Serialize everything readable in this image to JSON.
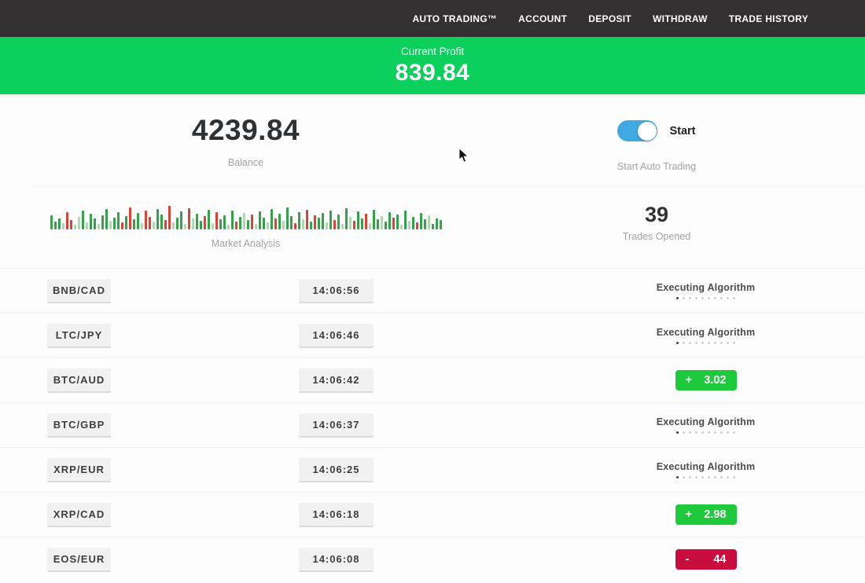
{
  "nav": {
    "items": [
      "AUTO TRADING™",
      "ACCOUNT",
      "DEPOSIT",
      "WITHDRAW",
      "TRADE HISTORY"
    ]
  },
  "profit_banner": {
    "label": "Current Profit",
    "value": "839.84"
  },
  "account": {
    "balance_value": "4239.84",
    "balance_label": "Balance",
    "toggle_label": "Start",
    "toggle_state": "on",
    "toggle_caption": "Start Auto Trading"
  },
  "market": {
    "analysis_label": "Market Analysis",
    "trades_opened_value": "39",
    "trades_opened_label": "Trades Opened"
  },
  "trades": [
    {
      "pair": "BNB/CAD",
      "time": "14:06:56",
      "status": "executing",
      "status_label": "Executing Algorithm"
    },
    {
      "pair": "LTC/JPY",
      "time": "14:06:46",
      "status": "executing",
      "status_label": "Executing Algorithm"
    },
    {
      "pair": "BTC/AUD",
      "time": "14:06:42",
      "status": "profit",
      "result_sign": "+",
      "result_value": "3.02"
    },
    {
      "pair": "BTC/GBP",
      "time": "14:06:37",
      "status": "executing",
      "status_label": "Executing Algorithm"
    },
    {
      "pair": "XRP/EUR",
      "time": "14:06:25",
      "status": "executing",
      "status_label": "Executing Algorithm"
    },
    {
      "pair": "XRP/CAD",
      "time": "14:06:18",
      "status": "profit",
      "result_sign": "+",
      "result_value": "2.98"
    },
    {
      "pair": "EOS/EUR",
      "time": "14:06:08",
      "status": "loss",
      "result_sign": "-",
      "result_value": "44"
    }
  ],
  "colors": {
    "banner_green": "#0bd15c",
    "profit_green": "#1fc93c",
    "loss_red": "#c90e3f",
    "toggle_blue": "#41a9e2",
    "nav_dark": "#333031",
    "candle_green": "#36a14b",
    "candle_red": "#d8433a",
    "candle_pale_green": "#aed9b2",
    "candle_pale_red": "#e9b4af"
  },
  "chart_data": {
    "type": "bar",
    "title": "Market Analysis",
    "note": "decorative candle strip; pairs of [height_px, color_key] where g=green r=red G=pale-green R=pale-red",
    "bars": [
      [
        18,
        "g"
      ],
      [
        10,
        "g"
      ],
      [
        14,
        "g"
      ],
      [
        8,
        "G"
      ],
      [
        22,
        "r"
      ],
      [
        12,
        "r"
      ],
      [
        6,
        "G"
      ],
      [
        16,
        "G"
      ],
      [
        24,
        "g"
      ],
      [
        9,
        "G"
      ],
      [
        20,
        "g"
      ],
      [
        14,
        "g"
      ],
      [
        7,
        "G"
      ],
      [
        18,
        "g"
      ],
      [
        26,
        "g"
      ],
      [
        11,
        "G"
      ],
      [
        15,
        "g"
      ],
      [
        22,
        "g"
      ],
      [
        9,
        "r"
      ],
      [
        17,
        "g"
      ],
      [
        28,
        "r"
      ],
      [
        13,
        "g"
      ],
      [
        21,
        "g"
      ],
      [
        8,
        "G"
      ],
      [
        24,
        "r"
      ],
      [
        16,
        "r"
      ],
      [
        10,
        "G"
      ],
      [
        26,
        "g"
      ],
      [
        19,
        "g"
      ],
      [
        12,
        "r"
      ],
      [
        30,
        "r"
      ],
      [
        9,
        "G"
      ],
      [
        15,
        "g"
      ],
      [
        23,
        "g"
      ],
      [
        7,
        "G"
      ],
      [
        27,
        "r"
      ],
      [
        14,
        "G"
      ],
      [
        20,
        "g"
      ],
      [
        11,
        "g"
      ],
      [
        17,
        "r"
      ],
      [
        25,
        "g"
      ],
      [
        8,
        "G"
      ],
      [
        22,
        "r"
      ],
      [
        13,
        "g"
      ],
      [
        18,
        "g"
      ],
      [
        6,
        "G"
      ],
      [
        24,
        "g"
      ],
      [
        10,
        "r"
      ],
      [
        16,
        "g"
      ],
      [
        21,
        "G"
      ],
      [
        12,
        "g"
      ],
      [
        19,
        "r"
      ],
      [
        7,
        "G"
      ],
      [
        23,
        "g"
      ],
      [
        15,
        "g"
      ],
      [
        9,
        "G"
      ],
      [
        26,
        "g"
      ],
      [
        14,
        "r"
      ],
      [
        20,
        "g"
      ],
      [
        11,
        "G"
      ],
      [
        28,
        "g"
      ],
      [
        17,
        "g"
      ],
      [
        8,
        "r"
      ],
      [
        22,
        "g"
      ],
      [
        13,
        "G"
      ],
      [
        25,
        "r"
      ],
      [
        10,
        "g"
      ],
      [
        18,
        "r"
      ],
      [
        15,
        "g"
      ],
      [
        21,
        "g"
      ],
      [
        9,
        "G"
      ],
      [
        24,
        "g"
      ],
      [
        12,
        "r"
      ],
      [
        19,
        "g"
      ],
      [
        7,
        "G"
      ],
      [
        27,
        "g"
      ],
      [
        16,
        "G"
      ],
      [
        11,
        "r"
      ],
      [
        23,
        "g"
      ],
      [
        14,
        "g"
      ],
      [
        20,
        "r"
      ],
      [
        8,
        "G"
      ],
      [
        25,
        "g"
      ],
      [
        13,
        "g"
      ],
      [
        17,
        "G"
      ],
      [
        10,
        "g"
      ],
      [
        22,
        "g"
      ],
      [
        15,
        "r"
      ],
      [
        19,
        "g"
      ],
      [
        6,
        "G"
      ],
      [
        24,
        "g"
      ],
      [
        11,
        "G"
      ],
      [
        16,
        "g"
      ],
      [
        9,
        "r"
      ],
      [
        21,
        "g"
      ],
      [
        13,
        "g"
      ],
      [
        18,
        "G"
      ],
      [
        7,
        "g"
      ],
      [
        14,
        "g"
      ],
      [
        12,
        "g"
      ]
    ]
  }
}
